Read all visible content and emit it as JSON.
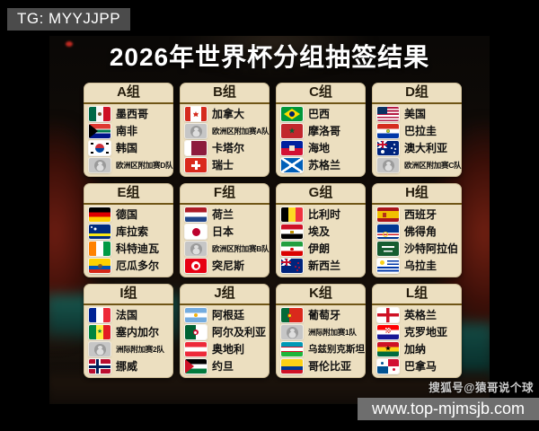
{
  "title": "2026年世界杯分组抽签结果",
  "badges": {
    "tg": "TG: MYYJJPP",
    "watermark": "搜狐号@猿哥说个球",
    "url": "www.top-mjmsjb.com"
  },
  "colors": {
    "card_bg": "#ecdfc0",
    "card_divider": "#6f5516",
    "tg_badge_bg": "#4b4b4b",
    "url_bar_bg": "#6e6e6e",
    "title_color": "#ffffff"
  },
  "groups": [
    {
      "label": "A组",
      "teams": [
        {
          "name": "墨西哥",
          "flag": "mexico"
        },
        {
          "name": "南非",
          "flag": "south-africa"
        },
        {
          "name": "韩国",
          "flag": "south-korea"
        },
        {
          "name": "欧洲区附加赛D队",
          "flag": "placeholder"
        }
      ]
    },
    {
      "label": "B组",
      "teams": [
        {
          "name": "加拿大",
          "flag": "canada"
        },
        {
          "name": "欧洲区附加赛A队",
          "flag": "placeholder"
        },
        {
          "name": "卡塔尔",
          "flag": "qatar"
        },
        {
          "name": "瑞士",
          "flag": "switzerland"
        }
      ]
    },
    {
      "label": "C组",
      "teams": [
        {
          "name": "巴西",
          "flag": "brazil"
        },
        {
          "name": "摩洛哥",
          "flag": "morocco"
        },
        {
          "name": "海地",
          "flag": "haiti"
        },
        {
          "name": "苏格兰",
          "flag": "scotland"
        }
      ]
    },
    {
      "label": "D组",
      "teams": [
        {
          "name": "美国",
          "flag": "usa"
        },
        {
          "name": "巴拉圭",
          "flag": "paraguay"
        },
        {
          "name": "澳大利亚",
          "flag": "australia"
        },
        {
          "name": "欧洲区附加赛C队",
          "flag": "placeholder"
        }
      ]
    },
    {
      "label": "E组",
      "teams": [
        {
          "name": "德国",
          "flag": "germany"
        },
        {
          "name": "库拉索",
          "flag": "curacao"
        },
        {
          "name": "科特迪瓦",
          "flag": "ivory-coast"
        },
        {
          "name": "厄瓜多尔",
          "flag": "ecuador"
        }
      ]
    },
    {
      "label": "F组",
      "teams": [
        {
          "name": "荷兰",
          "flag": "netherlands"
        },
        {
          "name": "日本",
          "flag": "japan"
        },
        {
          "name": "欧洲区附加赛B队",
          "flag": "placeholder"
        },
        {
          "name": "突尼斯",
          "flag": "tunisia"
        }
      ]
    },
    {
      "label": "G组",
      "teams": [
        {
          "name": "比利时",
          "flag": "belgium"
        },
        {
          "name": "埃及",
          "flag": "egypt"
        },
        {
          "name": "伊朗",
          "flag": "iran"
        },
        {
          "name": "新西兰",
          "flag": "new-zealand"
        }
      ]
    },
    {
      "label": "H组",
      "teams": [
        {
          "name": "西班牙",
          "flag": "spain"
        },
        {
          "name": "佛得角",
          "flag": "cape-verde"
        },
        {
          "name": "沙特阿拉伯",
          "flag": "saudi-arabia"
        },
        {
          "name": "乌拉圭",
          "flag": "uruguay"
        }
      ]
    },
    {
      "label": "I组",
      "teams": [
        {
          "name": "法国",
          "flag": "france"
        },
        {
          "name": "塞内加尔",
          "flag": "senegal"
        },
        {
          "name": "洲际附加赛2队",
          "flag": "placeholder"
        },
        {
          "name": "挪威",
          "flag": "norway"
        }
      ]
    },
    {
      "label": "J组",
      "teams": [
        {
          "name": "阿根廷",
          "flag": "argentina"
        },
        {
          "name": "阿尔及利亚",
          "flag": "algeria"
        },
        {
          "name": "奥地利",
          "flag": "austria"
        },
        {
          "name": "约旦",
          "flag": "jordan"
        }
      ]
    },
    {
      "label": "K组",
      "teams": [
        {
          "name": "葡萄牙",
          "flag": "portugal"
        },
        {
          "name": "洲际附加赛1队",
          "flag": "placeholder"
        },
        {
          "name": "乌兹别克斯坦",
          "flag": "uzbekistan"
        },
        {
          "name": "哥伦比亚",
          "flag": "colombia"
        }
      ]
    },
    {
      "label": "L组",
      "teams": [
        {
          "name": "英格兰",
          "flag": "england"
        },
        {
          "name": "克罗地亚",
          "flag": "croatia"
        },
        {
          "name": "加纳",
          "flag": "ghana"
        },
        {
          "name": "巴拿马",
          "flag": "panama"
        }
      ]
    }
  ]
}
